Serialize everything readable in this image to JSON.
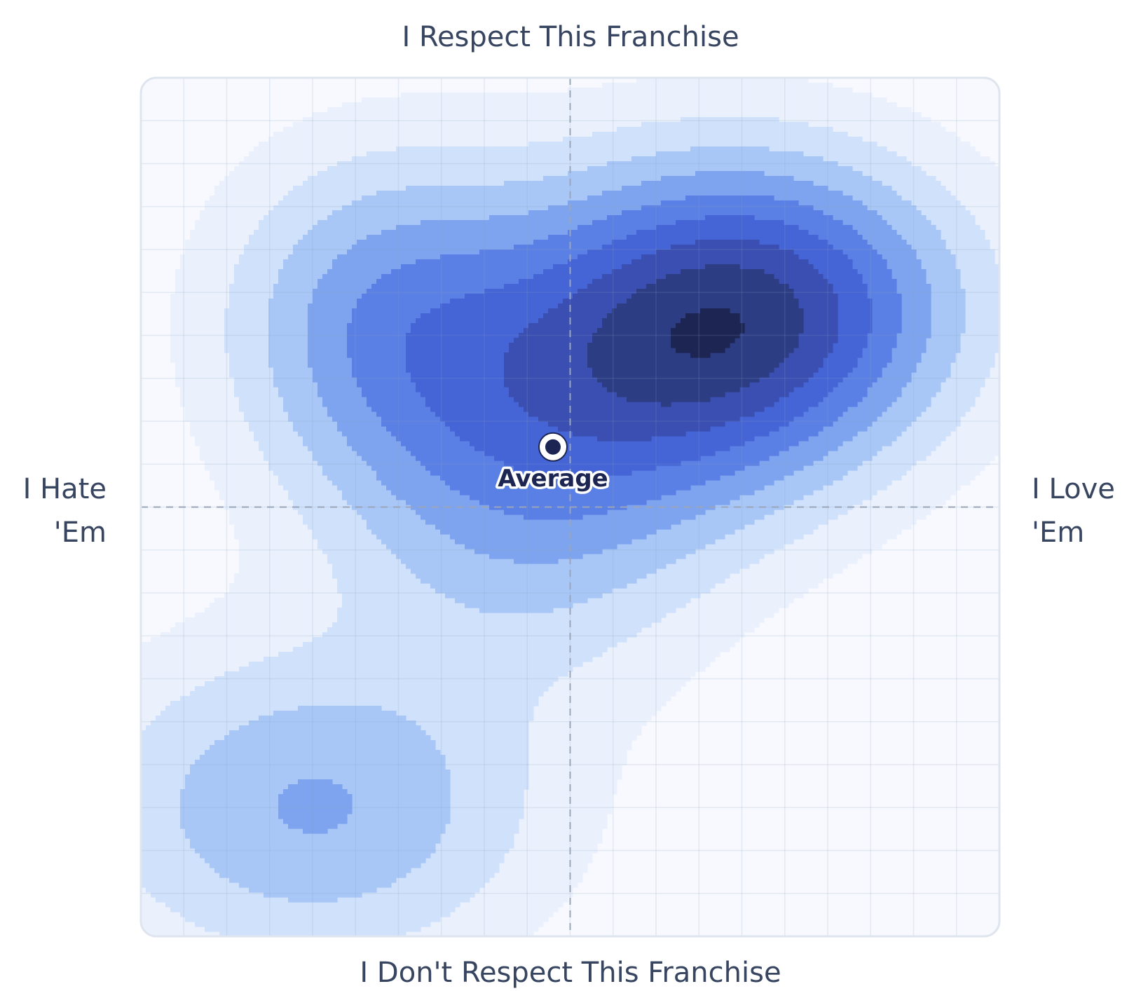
{
  "chart_data": {
    "type": "heatmap",
    "title": "",
    "axes": {
      "top": "I Respect This Franchise",
      "bottom": "I Don't Respect This Franchise",
      "left": [
        "I Hate",
        "'Em"
      ],
      "right": [
        "I Love",
        "'Em"
      ]
    },
    "xlim": [
      -1,
      1
    ],
    "ylim": [
      -1,
      1
    ],
    "grid": true,
    "center_lines": "dashed",
    "levels": [
      {
        "level": 1,
        "color": "#eaf1fd"
      },
      {
        "level": 2,
        "color": "#d0e1fb"
      },
      {
        "level": 3,
        "color": "#a8c7f7"
      },
      {
        "level": 4,
        "color": "#7ea4ef"
      },
      {
        "level": 5,
        "color": "#5b80e5"
      },
      {
        "level": 6,
        "color": "#4565d6"
      },
      {
        "level": 7,
        "color": "#3a4fb1"
      },
      {
        "level": 8,
        "color": "#2c3d84"
      },
      {
        "level": 9,
        "color": "#1d2653"
      }
    ],
    "density_peaks": [
      {
        "x": 0.28,
        "y": 0.4,
        "weight": 1.0
      },
      {
        "x": 0.55,
        "y": 0.48,
        "weight": 0.55
      },
      {
        "x": -0.1,
        "y": 0.1,
        "weight": 0.55
      },
      {
        "x": -0.42,
        "y": 0.44,
        "weight": 0.55
      },
      {
        "x": -0.6,
        "y": -0.7,
        "weight": 0.5
      }
    ],
    "average": {
      "label": "Average",
      "x": -0.04,
      "y": 0.14
    }
  }
}
